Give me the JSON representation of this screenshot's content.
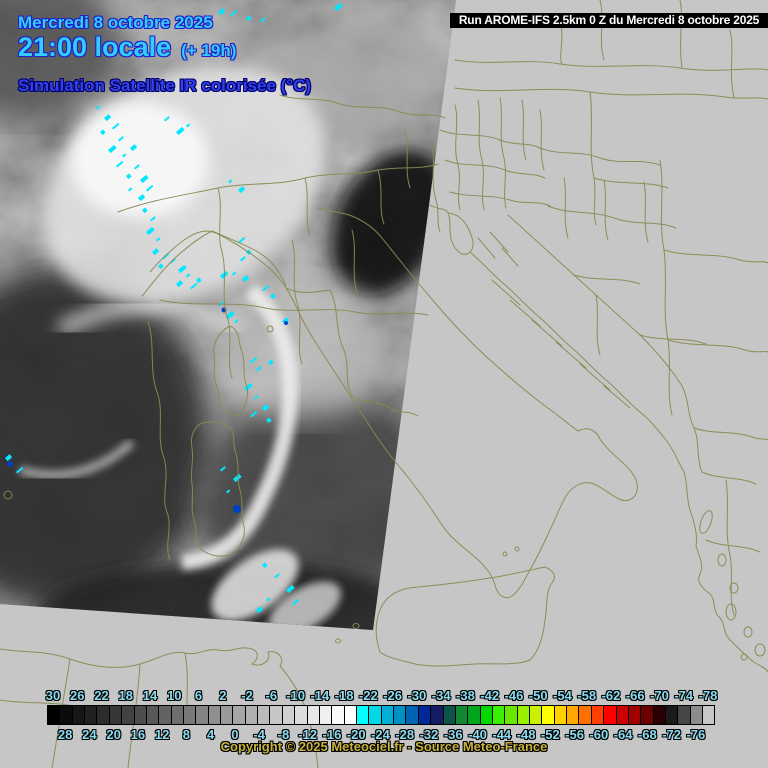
{
  "header": {
    "date": "Mercredi 8 octobre 2025",
    "time": "21:00 locale",
    "offset": "(+ 19h)",
    "subtitle": "Simulation Satellite IR colorisée (°C)",
    "run_label": "Run AROME-IFS 2.5km 0 Z du Mercredi 8 octobre 2025"
  },
  "footer": {
    "copyright": "Copyright © 2025 Meteociel.fr - Source Meteo-France"
  },
  "colors": {
    "background": "#C6C6C6",
    "map_border_lines": "#8A8A52",
    "header_cyan": "#33CCFF",
    "header_outline_blue": "#2020C8",
    "subtitle_blue": "#3340EE",
    "scale_label_cyan": "#8ADCF0",
    "copyright_yellow": "#C8B43C",
    "run_bar_bg": "#000000",
    "run_bar_text": "#FFFFFF",
    "cold_speckle_cyan": "#00E8FF"
  },
  "scale": {
    "unit": "°C",
    "top_labels": [
      "30",
      "26",
      "22",
      "18",
      "14",
      "10",
      "6",
      "2",
      "-2",
      "-6",
      "-10",
      "-14",
      "-18",
      "-22",
      "-26",
      "-30",
      "-34",
      "-38",
      "-42",
      "-46",
      "-50",
      "-54",
      "-58",
      "-62",
      "-66",
      "-70",
      "-74",
      "-78"
    ],
    "bottom_labels": [
      "28",
      "24",
      "20",
      "16",
      "12",
      "8",
      "4",
      "0",
      "-4",
      "-8",
      "-12",
      "-16",
      "-20",
      "-24",
      "-28",
      "-32",
      "-36",
      "-40",
      "-44",
      "-48",
      "-52",
      "-56",
      "-60",
      "-64",
      "-68",
      "-72",
      "-76"
    ],
    "cell_colors": [
      "#000000",
      "#0B0B0B",
      "#161616",
      "#212121",
      "#2C2C2C",
      "#373737",
      "#424242",
      "#4D4D4D",
      "#585858",
      "#636363",
      "#6E6E6E",
      "#797979",
      "#848484",
      "#8F8F8F",
      "#9A9A9A",
      "#A5A5A5",
      "#B0B0B0",
      "#BBBBBB",
      "#C6C6C6",
      "#D1D1D1",
      "#DCDCDC",
      "#E7E7E7",
      "#F0F0F0",
      "#FAFAFA",
      "#FFFFFF",
      "#00FFFF",
      "#00D8E8",
      "#00B0D8",
      "#0090C8",
      "#0064B4",
      "#002898",
      "#141C64",
      "#0C5448",
      "#128834",
      "#00A41E",
      "#00D800",
      "#38F000",
      "#68E800",
      "#98F000",
      "#C8F000",
      "#FFFF00",
      "#FFD000",
      "#FFA800",
      "#FF7000",
      "#FF4000",
      "#FF0000",
      "#CC0000",
      "#A00000",
      "#6C0000",
      "#2A0004",
      "#1A1A1A",
      "#464646",
      "#8C8C8C",
      "#C8C8C8"
    ]
  }
}
